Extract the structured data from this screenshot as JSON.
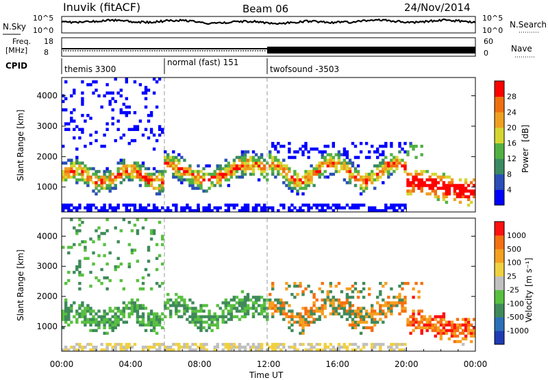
{
  "header": {
    "station": "Inuvik (fitACF)",
    "beam": "Beam 06",
    "date": "24/Nov/2014"
  },
  "colors": {
    "power_scale": [
      "#0000ff",
      "#2a4fb8",
      "#3b8a62",
      "#52b043",
      "#d6d630",
      "#f0a020",
      "#f07010",
      "#ff0000"
    ],
    "velocity_scale": [
      "#1f3cb4",
      "#2b6fb8",
      "#3f8a5a",
      "#58c040",
      "#c0c0c0",
      "#f0d040",
      "#f5a020",
      "#f57010",
      "#ff1010"
    ]
  },
  "chart_data": {
    "type": "heatmap",
    "x_axis": {
      "label": "Time UT",
      "range": [
        "00:00",
        "24:00"
      ],
      "ticks": [
        "00:00",
        "04:00",
        "08:00",
        "12:00",
        "16:00",
        "20:00",
        "00:00"
      ]
    },
    "top_strip": {
      "left_label": "N.Sky",
      "right_label": "N.Search",
      "left_ticks": [
        "10^5",
        "10^0"
      ],
      "right_ticks": [
        "10^5",
        "10^0"
      ]
    },
    "freq_strip": {
      "left_label_line1": "Freq.",
      "left_label_line2": "[MHz]",
      "left_ticks": [
        "18",
        "8"
      ],
      "right_label": "Nave",
      "right_ticks": [
        "60",
        "0"
      ]
    },
    "cpid": {
      "label": "CPID",
      "segments": [
        {
          "start_hour": 0,
          "end_hour": 6,
          "name": "themis 3300"
        },
        {
          "start_hour": 6,
          "end_hour": 12,
          "name": "normal (fast) 151"
        },
        {
          "start_hour": 12,
          "end_hour": 24,
          "name": "twofsound -3503"
        }
      ]
    },
    "panels": [
      {
        "quantity": "Power",
        "unit": "[dB]",
        "ylabel": "Slant Range [km]",
        "ylim": [
          180,
          4600
        ],
        "yticks": [
          1000,
          2000,
          3000,
          4000
        ],
        "colorbar_ticks": [
          "28",
          "24",
          "20",
          "16",
          "12",
          "8",
          "4"
        ]
      },
      {
        "quantity": "Velocity",
        "unit": "[m s⁻¹]",
        "ylabel": "Slant Range [km]",
        "ylim": [
          180,
          4600
        ],
        "yticks": [
          1000,
          2000,
          3000,
          4000
        ],
        "colorbar_ticks": [
          "1000",
          "500",
          "100",
          "25",
          "-25",
          "-100",
          "-500",
          "-1000"
        ]
      }
    ]
  }
}
